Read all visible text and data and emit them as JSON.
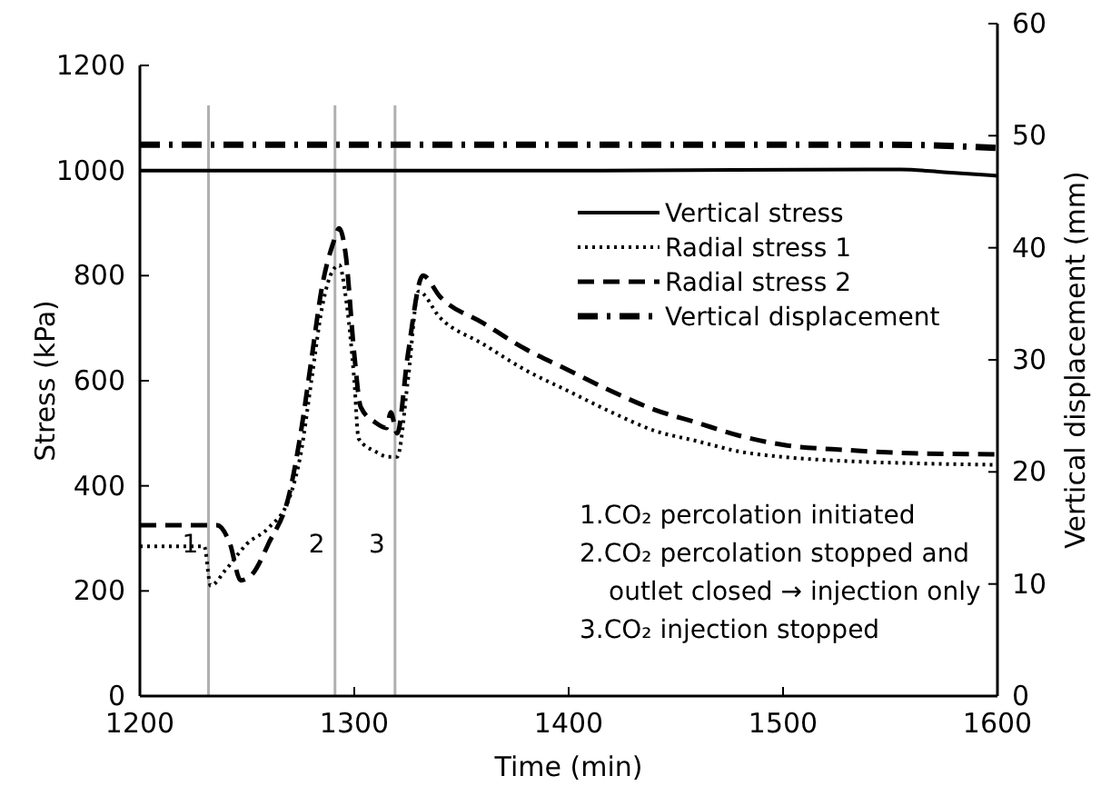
{
  "chart_data": {
    "type": "line",
    "xlabel": "Time (min)",
    "ylabel": "Stress (kPa)",
    "y2label": "Vertical displacement (mm)",
    "xlim": [
      1200,
      1600
    ],
    "xticks": [
      1200,
      1300,
      1400,
      1500,
      1600
    ],
    "ylim": [
      0,
      1200
    ],
    "yticks": [
      0,
      200,
      400,
      600,
      800,
      1000,
      1200
    ],
    "y2lim": [
      0,
      60
    ],
    "y2ticks": [
      0,
      10,
      20,
      30,
      40,
      50,
      60
    ],
    "grid": false,
    "legend": "top right",
    "series": [
      {
        "name": "Vertical stress",
        "color": "#000000",
        "line_style": "solid",
        "x": [
          1200,
          1300,
          1400,
          1555,
          1575,
          1600
        ],
        "values": [
          1000,
          1000,
          1000,
          1002,
          997,
          990
        ]
      },
      {
        "name": "Radial stress 1",
        "color": "#000000",
        "line_style": "dotted",
        "x": [
          1200,
          1230,
          1233,
          1240,
          1250,
          1260,
          1270,
          1275,
          1280,
          1285,
          1290,
          1293,
          1296,
          1300,
          1302,
          1310,
          1316,
          1320,
          1325,
          1330,
          1340,
          1360,
          1380,
          1400,
          1420,
          1440,
          1460,
          1480,
          1500,
          1530,
          1560,
          1600
        ],
        "values": [
          285,
          285,
          210,
          240,
          290,
          320,
          380,
          460,
          600,
          740,
          810,
          820,
          760,
          600,
          490,
          465,
          455,
          455,
          600,
          770,
          720,
          670,
          620,
          580,
          540,
          505,
          485,
          465,
          455,
          447,
          443,
          440
        ]
      },
      {
        "name": "Radial stress 2",
        "color": "#000000",
        "line_style": "dashed",
        "x": [
          1200,
          1236,
          1242,
          1247,
          1252,
          1260,
          1270,
          1275,
          1280,
          1285,
          1290,
          1293,
          1296,
          1300,
          1303,
          1310,
          1315,
          1317,
          1320,
          1325,
          1332,
          1340,
          1360,
          1380,
          1400,
          1420,
          1440,
          1460,
          1480,
          1500,
          1530,
          1560,
          1600
        ],
        "values": [
          325,
          325,
          290,
          220,
          230,
          290,
          390,
          500,
          640,
          780,
          860,
          890,
          840,
          650,
          550,
          520,
          510,
          540,
          500,
          650,
          800,
          760,
          710,
          660,
          620,
          580,
          545,
          520,
          495,
          478,
          468,
          462,
          460
        ]
      },
      {
        "name": "Vertical displacement",
        "color": "#000000",
        "line_style": "dashdot",
        "axis": "y2",
        "x": [
          1200,
          1550,
          1600
        ],
        "values": [
          49.2,
          49.2,
          48.9
        ]
      }
    ],
    "ref_lines": [
      {
        "axis": "x",
        "value": 1232,
        "color": "#b0b0b0"
      },
      {
        "axis": "x",
        "value": 1291,
        "color": "#b0b0b0"
      },
      {
        "axis": "x",
        "value": 1319,
        "color": "#b0b0b0"
      }
    ],
    "annotations": [
      {
        "text": "1",
        "x": 1232,
        "y": 290
      },
      {
        "text": "2",
        "x": 1291,
        "y": 290
      },
      {
        "text": "3",
        "x": 1319,
        "y": 290
      },
      "1.CO₂ percolation initiated",
      "2.CO₂ percolation stopped and\noutlet closed → injection only",
      "3.CO₂ injection stopped"
    ]
  }
}
